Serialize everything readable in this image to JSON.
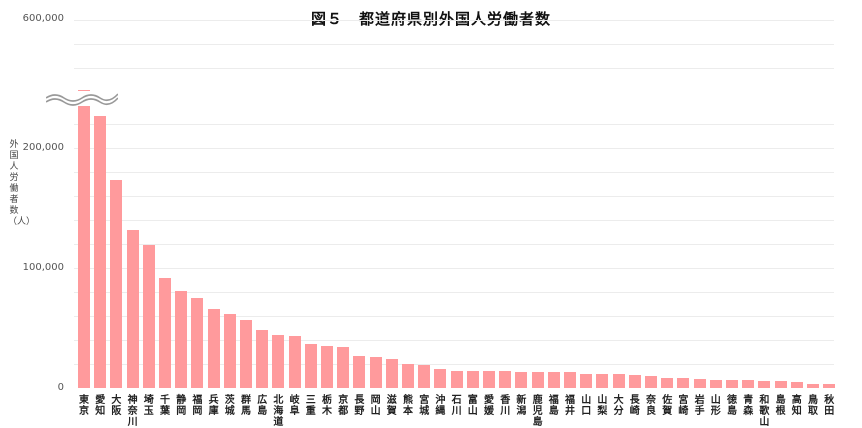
{
  "chart_data": {
    "type": "bar",
    "title": "図５　都道府県別外国人労働者数",
    "xlabel": "",
    "ylabel": "外国人労働者数（人）",
    "ylim": [
      0,
      600000
    ],
    "axis_break": {
      "between": [
        240000,
        500000
      ],
      "note": "broken y-axis for 東京"
    },
    "yticks": [
      "0",
      "100,000",
      "200,000",
      "600,000"
    ],
    "grid": true,
    "legend": null,
    "color": "#ff9a9c",
    "categories": [
      "東京",
      "愛知",
      "大阪",
      "神奈川",
      "埼玉",
      "千葉",
      "静岡",
      "福岡",
      "兵庫",
      "茨城",
      "群馬",
      "広島",
      "北海道",
      "岐阜",
      "三重",
      "栃木",
      "京都",
      "長野",
      "岡山",
      "滋賀",
      "熊本",
      "宮城",
      "沖縄",
      "石川",
      "富山",
      "愛媛",
      "香川",
      "新潟",
      "鹿児島",
      "福島",
      "福井",
      "山口",
      "山梨",
      "大分",
      "長崎",
      "奈良",
      "佐賀",
      "宮崎",
      "岩手",
      "山形",
      "徳島",
      "青森",
      "和歌山",
      "島根",
      "高知",
      "鳥取",
      "秋田"
    ],
    "values": [
      542000,
      227000,
      173000,
      132000,
      119000,
      92000,
      81000,
      75000,
      66000,
      62000,
      57000,
      48000,
      44000,
      43000,
      37000,
      35000,
      34000,
      27000,
      26000,
      24000,
      20000,
      19000,
      16000,
      14500,
      14000,
      14000,
      14000,
      13500,
      13500,
      13000,
      13000,
      12000,
      12000,
      11500,
      10500,
      10000,
      8500,
      8500,
      7500,
      6500,
      6500,
      6500,
      5500,
      5500,
      4800,
      3600,
      3300
    ]
  },
  "labels": {
    "title": "図５　都道府県別外国人労働者数",
    "ylabel": "外国人労働者数（人）",
    "ticks": {
      "t600k": "600,000",
      "t200k": "200,000",
      "t100k": "100,000",
      "t0": "0"
    }
  }
}
